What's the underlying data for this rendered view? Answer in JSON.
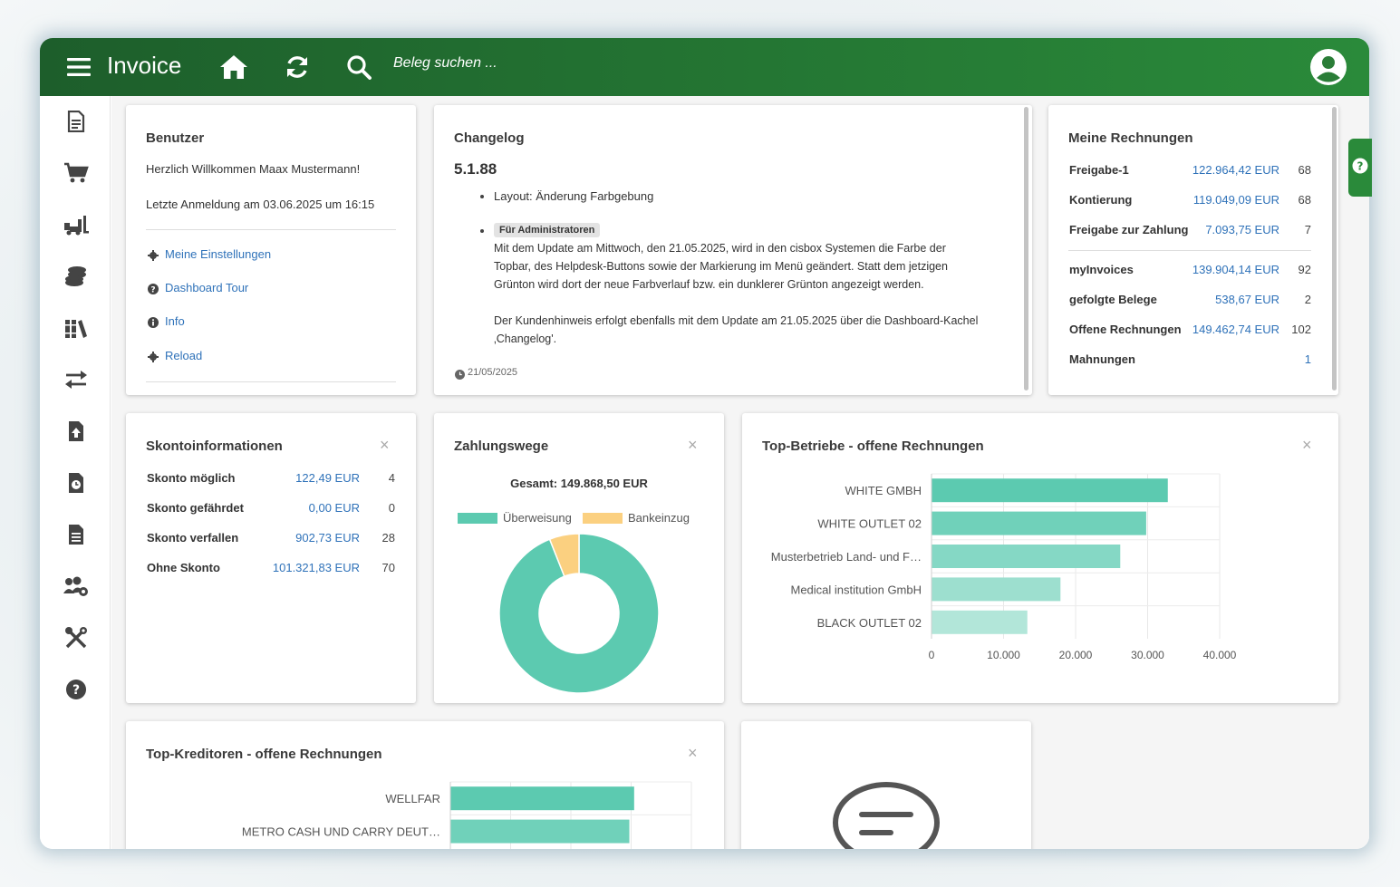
{
  "header": {
    "app_title": "Invoice",
    "search_placeholder": "Beleg suchen ..."
  },
  "sidebar": {
    "items": [
      {
        "icon": "document-icon"
      },
      {
        "icon": "cart-icon"
      },
      {
        "icon": "forklift-icon"
      },
      {
        "icon": "coins-icon"
      },
      {
        "icon": "books-icon"
      },
      {
        "icon": "transfer-icon"
      },
      {
        "icon": "file-upload-icon"
      },
      {
        "icon": "file-clock-icon"
      },
      {
        "icon": "file-text-icon"
      },
      {
        "icon": "users-gear-icon"
      },
      {
        "icon": "tools-icon"
      },
      {
        "icon": "help-icon"
      }
    ]
  },
  "benutzer": {
    "title": "Benutzer",
    "welcome": "Herzlich Willkommen Maax Mustermann!",
    "last_login": "Letzte Anmeldung am 03.06.2025 um 16:15",
    "links": {
      "settings": "Meine Einstellungen",
      "tour": "Dashboard Tour",
      "info": "Info",
      "reload": "Reload"
    }
  },
  "changelog": {
    "title": "Changelog",
    "version": "5.1.88",
    "item1": "Layout: Änderung Farbgebung",
    "badge": "Für Administratoren",
    "para1_line1": "Mit dem Update am Mittwoch, den 21.05.2025, wird in den cisbox Systemen die Farbe der",
    "para1_line2": "Topbar, des Helpdesk-Buttons sowie der Markierung im Menü geändert. Statt dem jetzigen",
    "para1_line3": "Grünton wird dort der neue Farbverlauf bzw. ein dunklerer Grünton angezeigt werden.",
    "para2_line1": "Der Kundenhinweis erfolgt ebenfalls mit dem Update am 21.05.2025 über die Dashboard-Kachel",
    "para2_line2": "‚Changelog'.",
    "date": "21/05/2025"
  },
  "meine_rechnungen": {
    "title": "Meine Rechnungen",
    "rows": [
      {
        "label": "Freigabe-1",
        "amount": "122.964,42 EUR",
        "count": "68"
      },
      {
        "label": "Kontierung",
        "amount": "119.049,09 EUR",
        "count": "68"
      },
      {
        "label": "Freigabe zur Zahlung",
        "amount": "7.093,75 EUR",
        "count": "7"
      },
      {
        "label": "myInvoices",
        "amount": "139.904,14 EUR",
        "count": "92"
      },
      {
        "label": "gefolgte Belege",
        "amount": "538,67 EUR",
        "count": "2"
      },
      {
        "label": "Offene Rechnungen",
        "amount": "149.462,74 EUR",
        "count": "102"
      },
      {
        "label": "Mahnungen",
        "amount": "",
        "count": "1"
      }
    ]
  },
  "skonto": {
    "title": "Skontoinformationen",
    "close": "×",
    "rows": [
      {
        "label": "Skonto möglich",
        "amount": "122,49 EUR",
        "count": "4"
      },
      {
        "label": "Skonto gefährdet",
        "amount": "0,00 EUR",
        "count": "0"
      },
      {
        "label": "Skonto verfallen",
        "amount": "902,73 EUR",
        "count": "28"
      },
      {
        "label": "Ohne Skonto",
        "amount": "101.321,83 EUR",
        "count": "70"
      }
    ]
  },
  "zahlungswege": {
    "title": "Zahlungswege",
    "close": "×",
    "total_label": "Gesamt: 149.868,50 EUR"
  },
  "top_betriebe": {
    "title": "Top-Betriebe - offene Rechnungen",
    "close": "×"
  },
  "top_kreditoren": {
    "title": "Top-Kreditoren - offene Rechnungen",
    "close": "×"
  },
  "colors": {
    "topbar_start": "#1d5e2b",
    "topbar_end": "#2a8a3a",
    "link": "#2f72b9",
    "teal": "#5ccab0",
    "yellow": "#fbd080"
  },
  "chart_data": [
    {
      "type": "pie",
      "donut": true,
      "categories": [
        "Überweisung",
        "Bankeinzug"
      ],
      "values": [
        94,
        6
      ],
      "colors": [
        "#5ccab0",
        "#fbd080"
      ],
      "legend": "top"
    },
    {
      "type": "bar",
      "orientation": "horizontal",
      "categories": [
        "WHITE GMBH",
        "WHITE OUTLET 02",
        "Musterbetrieb Land- und F…",
        "Medical institution GmbH",
        "BLACK OUTLET 02"
      ],
      "values": [
        32800,
        29800,
        26200,
        17900,
        13300
      ],
      "xlim": [
        0,
        40000
      ],
      "xticks": [
        "0",
        "10.000",
        "20.000",
        "30.000",
        "40.000"
      ],
      "colors": [
        "#5ccab0",
        "#70d1ba",
        "#85d8c5",
        "#9ddfcf",
        "#b2e6d9"
      ]
    },
    {
      "type": "bar",
      "orientation": "horizontal",
      "categories": [
        "WELLFAR",
        "METRO CASH UND CARRY DEUT…"
      ],
      "values": [
        30500,
        29700
      ],
      "xlim": [
        0,
        40000
      ],
      "colors": [
        "#5ccab0",
        "#70d1ba"
      ]
    }
  ]
}
